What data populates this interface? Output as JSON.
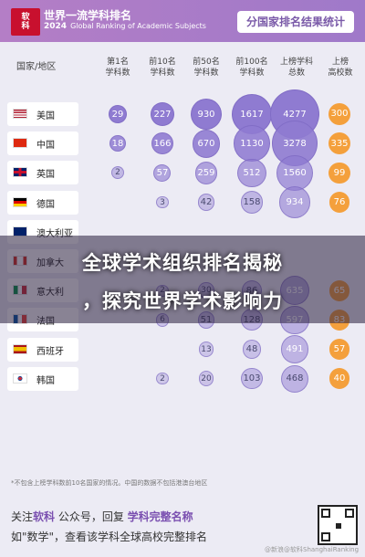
{
  "header": {
    "logo_text_1": "软",
    "logo_text_2": "科",
    "title": "世界一流学科排名",
    "year": "2024",
    "subtitle": "Global Ranking of Academic Subjects",
    "badge": "分国家排名结果统计"
  },
  "columns": {
    "country": "国家/地区",
    "c1": [
      "第1名",
      "学科数"
    ],
    "c10": [
      "前10名",
      "学科数"
    ],
    "c50": [
      "前50名",
      "学科数"
    ],
    "c100": [
      "前100名",
      "学科数"
    ],
    "call": [
      "上榜学科",
      "总数"
    ],
    "cuni": [
      "上榜",
      "高校数"
    ]
  },
  "rows": [
    {
      "name": "美国",
      "flag": "us-flag",
      "v1": "29",
      "v10": "227",
      "v50": "930",
      "v100": "1617",
      "vall": "4277",
      "vuni": "300"
    },
    {
      "name": "中国",
      "flag": "cn-flag",
      "v1": "18",
      "v10": "166",
      "v50": "670",
      "v100": "1130",
      "vall": "3278",
      "vuni": "335"
    },
    {
      "name": "英国",
      "flag": "gb-flag",
      "v1": "2",
      "v10": "57",
      "v50": "259",
      "v100": "512",
      "vall": "1560",
      "vuni": "99"
    },
    {
      "name": "德国",
      "flag": "de-flag",
      "v1": "",
      "v10": "3",
      "v50": "42",
      "v100": "158",
      "vall": "934",
      "vuni": "76"
    },
    {
      "name": "澳大利亚",
      "flag": "au-flag",
      "v1": "",
      "v10": "",
      "v50": "",
      "v100": "",
      "vall": "",
      "vuni": ""
    },
    {
      "name": "加拿大",
      "flag": "ca-flag",
      "v1": "",
      "v10": "",
      "v50": "",
      "v100": "",
      "vall": "",
      "vuni": ""
    },
    {
      "name": "意大利",
      "flag": "it-flag",
      "v1": "",
      "v10": "2",
      "v50": "30",
      "v100": "86",
      "vall": "635",
      "vuni": "65"
    },
    {
      "name": "法国",
      "flag": "fr-flag",
      "v1": "",
      "v10": "6",
      "v50": "51",
      "v100": "128",
      "vall": "597",
      "vuni": "83"
    },
    {
      "name": "西班牙",
      "flag": "es-flag",
      "v1": "",
      "v10": "",
      "v50": "13",
      "v100": "48",
      "vall": "491",
      "vuni": "57"
    },
    {
      "name": "韩国",
      "flag": "kr-flag",
      "v1": "",
      "v10": "2",
      "v50": "20",
      "v100": "103",
      "vall": "468",
      "vuni": "40"
    }
  ],
  "banner": {
    "line1": "全球学术组织排名揭秘",
    "line2": "，探究世界学术影响力"
  },
  "footer": {
    "note": "*不包含上榜学科数前10名国家的情况。中国的数据不包括港澳台地区",
    "line1_a": "关注",
    "line1_b": "软科",
    "line1_c": " 公众号，回复 ",
    "line1_d": "学科完整名称",
    "line2": "如\"数学\"，查看该学科全球高校完整排名",
    "watermark": "@新浪@软科ShanghaiRanking"
  },
  "colors": {
    "header_start": "#b47ec6",
    "header_end": "#9f79c9",
    "bubble": "#8f7bd1",
    "orange": "#f4a03c",
    "banner_overlay": "rgba(40,30,60,0.55)"
  }
}
